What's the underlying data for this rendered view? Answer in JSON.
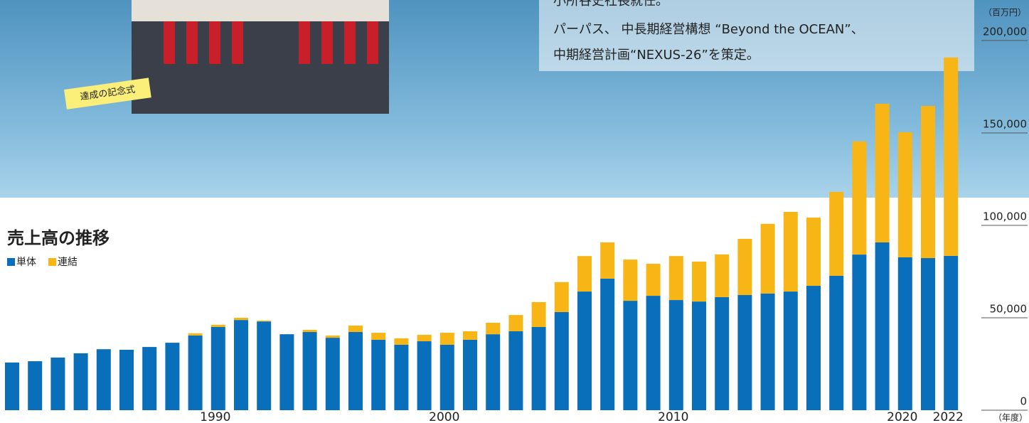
{
  "chart_data": {
    "type": "bar",
    "stacked": true,
    "title": "売上高の推移",
    "y_unit": "（百万円）",
    "x_unit": "（年度）",
    "photo_caption": "達成の記念式",
    "notes": [
      "小所谷史社長就任。",
      "パーパス、 中長期経営構想 “Beyond the OCEAN”、",
      "中期経営計画“NEXUS-26”を策定。"
    ],
    "categories": [
      null,
      null,
      null,
      null,
      null,
      null,
      null,
      null,
      null,
      "1990",
      null,
      null,
      null,
      null,
      null,
      null,
      null,
      null,
      null,
      "2000",
      null,
      null,
      null,
      null,
      null,
      null,
      null,
      null,
      null,
      "2010",
      null,
      null,
      null,
      null,
      null,
      null,
      null,
      null,
      null,
      "2020",
      null,
      "2022"
    ],
    "series": [
      {
        "name": "単体",
        "color": "#0a6fba",
        "values": [
          25800,
          26500,
          28500,
          30800,
          33000,
          32700,
          34200,
          36500,
          40400,
          45000,
          48800,
          48000,
          41100,
          42300,
          39200,
          42300,
          38100,
          35400,
          37300,
          35400,
          38100,
          41100,
          42700,
          45000,
          53100,
          64200,
          71200,
          59200,
          61900,
          59600,
          58800,
          61200,
          62300,
          63100,
          64200,
          67300,
          72700,
          84200,
          90800,
          82700,
          82300,
          83500
        ]
      },
      {
        "name": "連結",
        "color": "#f7b516",
        "values": [
          0,
          0,
          0,
          0,
          0,
          0,
          0,
          0,
          1200,
          1200,
          1200,
          500,
          0,
          1200,
          1200,
          3500,
          3800,
          3500,
          3500,
          6500,
          4600,
          6200,
          8800,
          13500,
          16200,
          19200,
          19600,
          22300,
          17300,
          23800,
          21600,
          23100,
          30400,
          37700,
          43100,
          36900,
          45400,
          61200,
          75000,
          67700,
          82300,
          107300
        ]
      }
    ],
    "ylim": [
      0,
      200000
    ],
    "yticks": [
      0,
      {
        "value": 50000,
        "label": "50,000"
      },
      {
        "value": 100000,
        "label": "100,000"
      },
      {
        "value": 150000,
        "label": "150,000"
      },
      {
        "value": 200000,
        "label": "200,000"
      }
    ]
  }
}
